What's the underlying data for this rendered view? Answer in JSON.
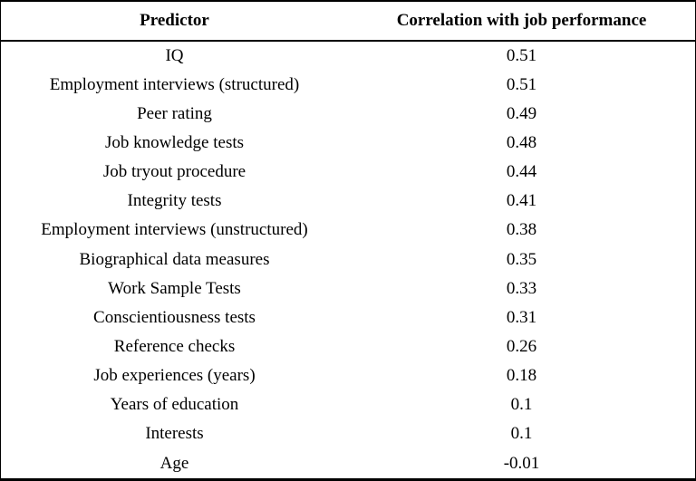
{
  "colors": {
    "background": "#ffffff",
    "text": "#000000",
    "border": "#000000"
  },
  "table": {
    "headers": [
      "Predictor",
      "Correlation with job performance"
    ],
    "rows": [
      {
        "predictor": "IQ",
        "value": "0.51"
      },
      {
        "predictor": "Employment interviews (structured)",
        "value": "0.51"
      },
      {
        "predictor": "Peer rating",
        "value": "0.49"
      },
      {
        "predictor": "Job knowledge tests",
        "value": "0.48"
      },
      {
        "predictor": "Job tryout procedure",
        "value": "0.44"
      },
      {
        "predictor": "Integrity tests",
        "value": "0.41"
      },
      {
        "predictor": "Employment interviews (unstructured)",
        "value": "0.38"
      },
      {
        "predictor": "Biographical data measures",
        "value": "0.35"
      },
      {
        "predictor": "Work Sample Tests",
        "value": "0.33"
      },
      {
        "predictor": "Conscientiousness tests",
        "value": "0.31"
      },
      {
        "predictor": "Reference checks",
        "value": "0.26"
      },
      {
        "predictor": "Job experiences (years)",
        "value": "0.18"
      },
      {
        "predictor": "Years of education",
        "value": "0.1"
      },
      {
        "predictor": "Interests",
        "value": "0.1"
      },
      {
        "predictor": "Age",
        "value": "-0.01"
      }
    ]
  },
  "chart_data": {
    "type": "table",
    "title": "",
    "columns": [
      "Predictor",
      "Correlation with job performance"
    ],
    "rows": [
      [
        "IQ",
        0.51
      ],
      [
        "Employment interviews (structured)",
        0.51
      ],
      [
        "Peer rating",
        0.49
      ],
      [
        "Job knowledge tests",
        0.48
      ],
      [
        "Job tryout procedure",
        0.44
      ],
      [
        "Integrity tests",
        0.41
      ],
      [
        "Employment interviews (unstructured)",
        0.38
      ],
      [
        "Biographical data measures",
        0.35
      ],
      [
        "Work Sample Tests",
        0.33
      ],
      [
        "Conscientiousness tests",
        0.31
      ],
      [
        "Reference checks",
        0.26
      ],
      [
        "Job experiences (years)",
        0.18
      ],
      [
        "Years of education",
        0.1
      ],
      [
        "Interests",
        0.1
      ],
      [
        "Age",
        -0.01
      ]
    ]
  }
}
